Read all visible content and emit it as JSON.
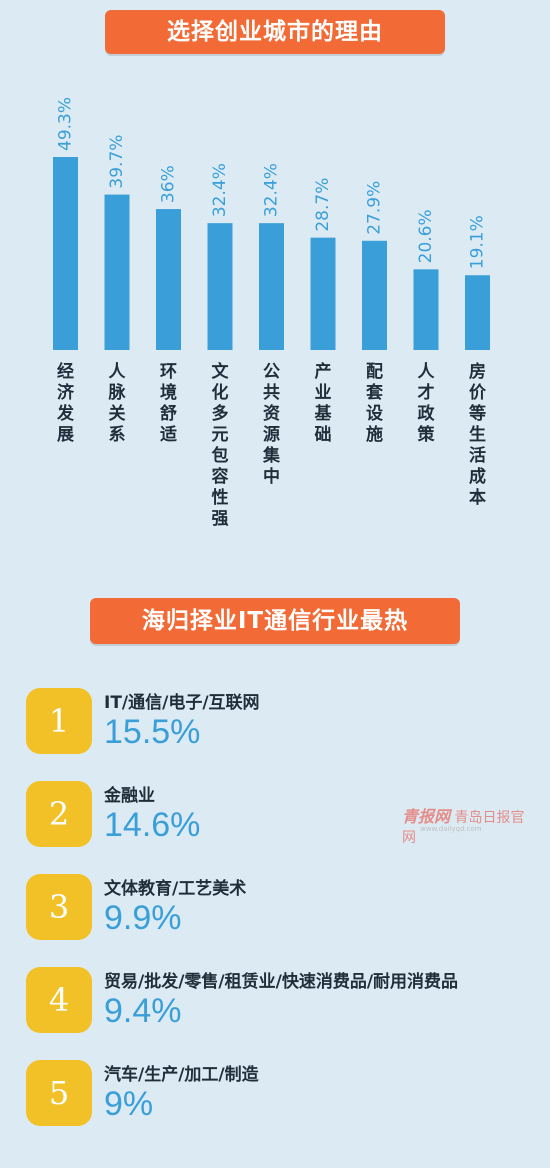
{
  "header": {
    "title": "选择创业城市的理由"
  },
  "chart_data": {
    "type": "bar",
    "title": "选择创业城市的理由",
    "categories": [
      "经济发展",
      "人脉关系",
      "环境舒适",
      "文化多元包容性强",
      "公共资源集中",
      "产业基础",
      "配套设施",
      "人才政策",
      "房价等生活成本"
    ],
    "values": [
      49.3,
      39.7,
      36,
      32.4,
      32.4,
      28.7,
      27.9,
      20.6,
      19.1
    ],
    "value_labels": [
      "49.3%",
      "39.7%",
      "36%",
      "32.4%",
      "32.4%",
      "28.7%",
      "27.9%",
      "20.6%",
      "19.1%"
    ],
    "ylim": [
      0,
      49.3
    ],
    "grid": false,
    "bar_color": "#3a9fd9"
  },
  "industries": {
    "title": "海归择业IT通信行业最热",
    "items": [
      {
        "rank": "1",
        "label": "IT/通信/电子/互联网",
        "value": "15.5%"
      },
      {
        "rank": "2",
        "label": "金融业",
        "value": "14.6%"
      },
      {
        "rank": "3",
        "label": "文体教育/工艺美术",
        "value": "9.9%"
      },
      {
        "rank": "4",
        "label": "贸易/批发/零售/租赁业/快速消费品/耐用消费品",
        "value": "9.4%"
      },
      {
        "rank": "5",
        "label": "汽车/生产/加工/制造",
        "value": "9%"
      }
    ]
  },
  "watermark": {
    "main": "青报网",
    "sub": "青岛日报官网",
    "url": "www.dailyqd.com"
  },
  "colors": {
    "background": "#dcebf3",
    "banner": "#f26a35",
    "bar": "#3a9fd9",
    "badge": "#f2c128"
  }
}
